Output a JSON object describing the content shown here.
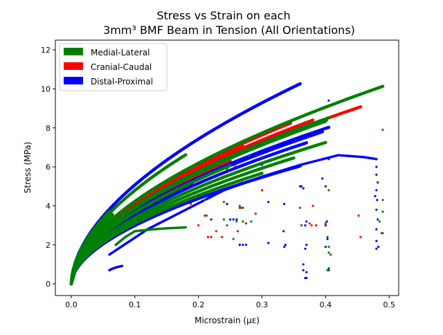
{
  "chart_data": {
    "type": "scatter",
    "title_line1": "Stress vs Strain on each",
    "title_line2": "3mm³ BMF Beam in Tension (All Orientations)",
    "xlabel": "Microstrain (με)",
    "ylabel": "Stress (MPa)",
    "xlim": [
      -0.025,
      0.515
    ],
    "ylim": [
      -0.6,
      12.5
    ],
    "x_ticks": [
      0.0,
      0.1,
      0.2,
      0.3,
      0.4,
      0.5
    ],
    "x_tick_labels": [
      "0.0",
      "0.1",
      "0.2",
      "0.3",
      "0.4",
      "0.5"
    ],
    "y_ticks": [
      0,
      2,
      4,
      6,
      8,
      10,
      12
    ],
    "y_tick_labels": [
      "0",
      "2",
      "4",
      "6",
      "8",
      "10",
      "12"
    ],
    "grid": false,
    "legend_position": "upper-left",
    "series": [
      {
        "name": "Medial-Lateral",
        "color": "#008000",
        "curves": [
          {
            "k": 15.0,
            "n": 0.55,
            "xend": 0.49
          },
          {
            "k": 14.0,
            "n": 0.55,
            "xend": 0.405
          },
          {
            "k": 13.8,
            "n": 0.55,
            "xend": 0.4
          },
          {
            "k": 15.0,
            "n": 0.55,
            "xend": 0.28
          },
          {
            "k": 13.0,
            "n": 0.55,
            "xend": 0.25
          },
          {
            "k": 17.0,
            "n": 0.55,
            "xend": 0.18
          },
          {
            "k": 12.0,
            "n": 0.55,
            "xend": 0.4
          },
          {
            "k": 11.5,
            "n": 0.55,
            "xend": 0.35
          },
          {
            "k": 11.0,
            "n": 0.55,
            "xend": 0.3
          },
          {
            "k": 17.5,
            "n": 0.55,
            "xend": 0.06
          },
          {
            "k": 16.0,
            "n": 0.55,
            "xend": 0.065
          },
          {
            "k": 14.5,
            "n": 0.55,
            "xend": 0.055
          }
        ],
        "plateaus": [
          {
            "x": [
              0.07,
              0.085,
              0.1,
              0.13,
              0.15,
              0.17,
              0.18
            ],
            "y": [
              2.0,
              2.4,
              2.7,
              2.8,
              2.85,
              2.88,
              2.9
            ]
          }
        ],
        "scatter": [
          [
            0.49,
            7.9
          ],
          [
            0.49,
            4.3
          ],
          [
            0.49,
            3.7
          ],
          [
            0.49,
            2.6
          ],
          [
            0.488,
            2.6
          ],
          [
            0.485,
            3.2
          ],
          [
            0.403,
            2.4
          ],
          [
            0.405,
            1.9
          ],
          [
            0.405,
            1.6
          ],
          [
            0.408,
            1.5
          ],
          [
            0.405,
            0.8
          ],
          [
            0.403,
            0.7
          ],
          [
            0.362,
            3.0
          ],
          [
            0.36,
            3.9
          ],
          [
            0.405,
            4.8
          ],
          [
            0.283,
            3.2
          ],
          [
            0.28,
            6.6
          ],
          [
            0.27,
            3.2
          ],
          [
            0.27,
            3.9
          ],
          [
            0.245,
            3.0
          ],
          [
            0.24,
            4.2
          ],
          [
            0.245,
            5.9
          ],
          [
            0.213,
            3.5
          ],
          [
            0.21,
            4.3
          ],
          [
            0.255,
            2.3
          ],
          [
            0.24,
            3.3
          ],
          [
            0.265,
            4.0
          ],
          [
            0.3,
            6.5
          ],
          [
            0.26,
            3.2
          ],
          [
            0.275,
            3.1
          ]
        ]
      },
      {
        "name": "Cranial-Caudal",
        "color": "#ff0000",
        "curves": [
          {
            "k": 14.0,
            "n": 0.55,
            "xend": 0.455
          },
          {
            "k": 14.3,
            "n": 0.55,
            "xend": 0.38
          },
          {
            "k": 14.8,
            "n": 0.55,
            "xend": 0.345
          },
          {
            "k": 14.5,
            "n": 0.55,
            "xend": 0.27
          },
          {
            "k": 13.5,
            "n": 0.55,
            "xend": 0.25
          },
          {
            "k": 13.0,
            "n": 0.55,
            "xend": 0.22
          },
          {
            "k": 12.8,
            "n": 0.55,
            "xend": 0.19
          }
        ],
        "plateaus": [],
        "scatter": [
          [
            0.215,
            2.4
          ],
          [
            0.22,
            2.4
          ],
          [
            0.21,
            3.5
          ],
          [
            0.237,
            2.4
          ],
          [
            0.228,
            2.7
          ],
          [
            0.265,
            2.0
          ],
          [
            0.262,
            2.7
          ],
          [
            0.268,
            3.9
          ],
          [
            0.265,
            3.9
          ],
          [
            0.26,
            3.3
          ],
          [
            0.268,
            5.3
          ],
          [
            0.258,
            6.0
          ],
          [
            0.3,
            4.8
          ],
          [
            0.29,
            3.6
          ],
          [
            0.375,
            3.1
          ],
          [
            0.378,
            3.0
          ],
          [
            0.38,
            4.0
          ],
          [
            0.385,
            3.0
          ],
          [
            0.455,
            2.4
          ],
          [
            0.452,
            3.5
          ],
          [
            0.4,
            3.1
          ],
          [
            0.245,
            5.8
          ],
          [
            0.2,
            3.0
          ],
          [
            0.188,
            4.1
          ]
        ]
      },
      {
        "name": "Distal-Proximal",
        "color": "#0000ff",
        "curves": [
          {
            "k": 18.0,
            "n": 0.55,
            "xend": 0.36
          },
          {
            "k": 14.0,
            "n": 0.55,
            "xend": 0.38
          },
          {
            "k": 13.2,
            "n": 0.55,
            "xend": 0.405
          },
          {
            "k": 13.0,
            "n": 0.55,
            "xend": 0.395
          },
          {
            "k": 12.5,
            "n": 0.55,
            "xend": 0.37
          },
          {
            "k": 10.6,
            "n": 0.55,
            "xend": 0.36
          },
          {
            "k": 16.0,
            "n": 0.55,
            "xend": 0.06
          },
          {
            "k": 15.5,
            "n": 0.55,
            "xend": 0.055
          }
        ],
        "plateaus": [
          {
            "x": [
              0.06,
              0.12,
              0.18,
              0.24,
              0.3,
              0.36,
              0.42,
              0.46,
              0.48
            ],
            "y": [
              1.5,
              2.8,
              3.8,
              4.8,
              5.5,
              6.1,
              6.6,
              6.5,
              6.4
            ]
          },
          {
            "x": [
              0.06,
              0.065,
              0.07,
              0.075,
              0.08
            ],
            "y": [
              0.7,
              0.78,
              0.84,
              0.88,
              0.92
            ]
          }
        ],
        "scatter": [
          [
            0.48,
            6.0
          ],
          [
            0.48,
            5.6
          ],
          [
            0.482,
            5.2
          ],
          [
            0.48,
            4.8
          ],
          [
            0.481,
            4.3
          ],
          [
            0.48,
            3.8
          ],
          [
            0.482,
            3.3
          ],
          [
            0.48,
            2.8
          ],
          [
            0.48,
            2.2
          ],
          [
            0.48,
            1.8
          ],
          [
            0.483,
            1.9
          ],
          [
            0.478,
            4.5
          ],
          [
            0.405,
            9.4
          ],
          [
            0.402,
            8.4
          ],
          [
            0.405,
            8.0
          ],
          [
            0.405,
            6.4
          ],
          [
            0.4,
            5.0
          ],
          [
            0.395,
            5.4
          ],
          [
            0.362,
            5.0
          ],
          [
            0.36,
            5.0
          ],
          [
            0.365,
            4.9
          ],
          [
            0.37,
            3.2
          ],
          [
            0.368,
            3.0
          ],
          [
            0.37,
            2.0
          ],
          [
            0.368,
            1.8
          ],
          [
            0.365,
            1.0
          ],
          [
            0.37,
            0.6
          ],
          [
            0.368,
            0.3
          ],
          [
            0.37,
            0.3
          ],
          [
            0.365,
            0.7
          ],
          [
            0.4,
            3.0
          ],
          [
            0.402,
            3.2
          ],
          [
            0.4,
            1.9
          ],
          [
            0.403,
            2.3
          ],
          [
            0.405,
            0.7
          ],
          [
            0.405,
            0.8
          ],
          [
            0.335,
            1.9
          ],
          [
            0.337,
            2.0
          ],
          [
            0.334,
            2.7
          ],
          [
            0.335,
            4.1
          ],
          [
            0.31,
            2.1
          ],
          [
            0.31,
            4.2
          ],
          [
            0.265,
            2.0
          ],
          [
            0.27,
            2.0
          ],
          [
            0.275,
            2.0
          ],
          [
            0.25,
            3.3
          ],
          [
            0.255,
            3.3
          ],
          [
            0.26,
            3.3
          ],
          [
            0.245,
            4.1
          ],
          [
            0.3,
            6.1
          ],
          [
            0.245,
            5.9
          ],
          [
            0.22,
            3.3
          ]
        ]
      }
    ]
  }
}
